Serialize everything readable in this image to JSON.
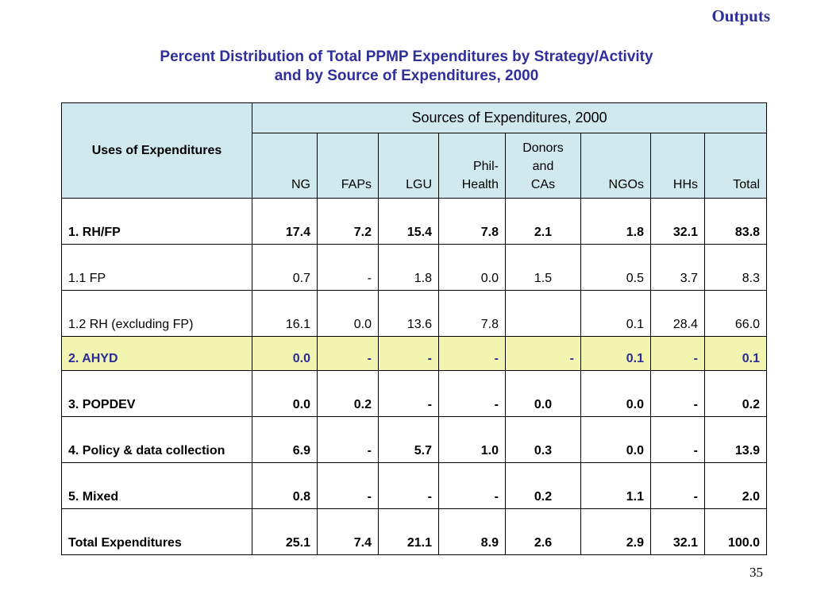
{
  "section_label": "Outputs",
  "title": {
    "line1": "Percent Distribution of Total PPMP Expenditures by Strategy/Activity",
    "line2": "and by Source of Expenditures,  2000"
  },
  "table": {
    "uses_header": "Uses of Expenditures",
    "sources_header": "Sources of Expenditures, 2000",
    "columns": {
      "ng": "NG",
      "faps": "FAPs",
      "lgu": "LGU",
      "philhealth_1": "Phil-",
      "philhealth_2": "Health",
      "donors_1": "Donors",
      "donors_2": "and",
      "donors_3": "CAs",
      "ngos": "NGOs",
      "hhs": "HHs",
      "total": "Total"
    },
    "rows": [
      {
        "label": "1.  RH/FP",
        "values": [
          "17.4",
          "7.2",
          "15.4",
          "7.8",
          "2.1",
          "1.8",
          "32.1",
          "83.8"
        ]
      },
      {
        "label": "1.1  FP",
        "values": [
          "0.7",
          "-",
          "1.8",
          "0.0",
          "1.5",
          "0.5",
          "3.7",
          "8.3"
        ]
      },
      {
        "label": "1.2  RH  (excluding FP)",
        "values": [
          "16.1",
          "0.0",
          "13.6",
          "7.8",
          "",
          "0.1",
          "28.4",
          "66.0"
        ]
      },
      {
        "label": "2.  AHYD",
        "values": [
          "0.0",
          "-",
          "-",
          "-",
          "-",
          "0.1",
          "-",
          "0.1"
        ]
      },
      {
        "label": "3.  POPDEV",
        "values": [
          "0.0",
          "0.2",
          "-",
          "-",
          "0.0",
          "0.0",
          "-",
          "0.2"
        ]
      },
      {
        "label": "4.  Policy & data collection",
        "values": [
          "6.9",
          "-",
          "5.7",
          "1.0",
          "0.3",
          "0.0",
          "-",
          "13.9"
        ]
      },
      {
        "label": "5.  Mixed",
        "values": [
          "0.8",
          "-",
          "-",
          "-",
          "0.2",
          "1.1",
          "-",
          "2.0"
        ]
      },
      {
        "label": "Total Expenditures",
        "values": [
          "25.1",
          "7.4",
          "21.1",
          "8.9",
          "2.6",
          "2.9",
          "32.1",
          "100.0"
        ]
      }
    ]
  },
  "highlight_color": "#f1f5b0",
  "header_color": "#cfe9ef",
  "title_color": "#2f2f9c",
  "page_number": "35"
}
